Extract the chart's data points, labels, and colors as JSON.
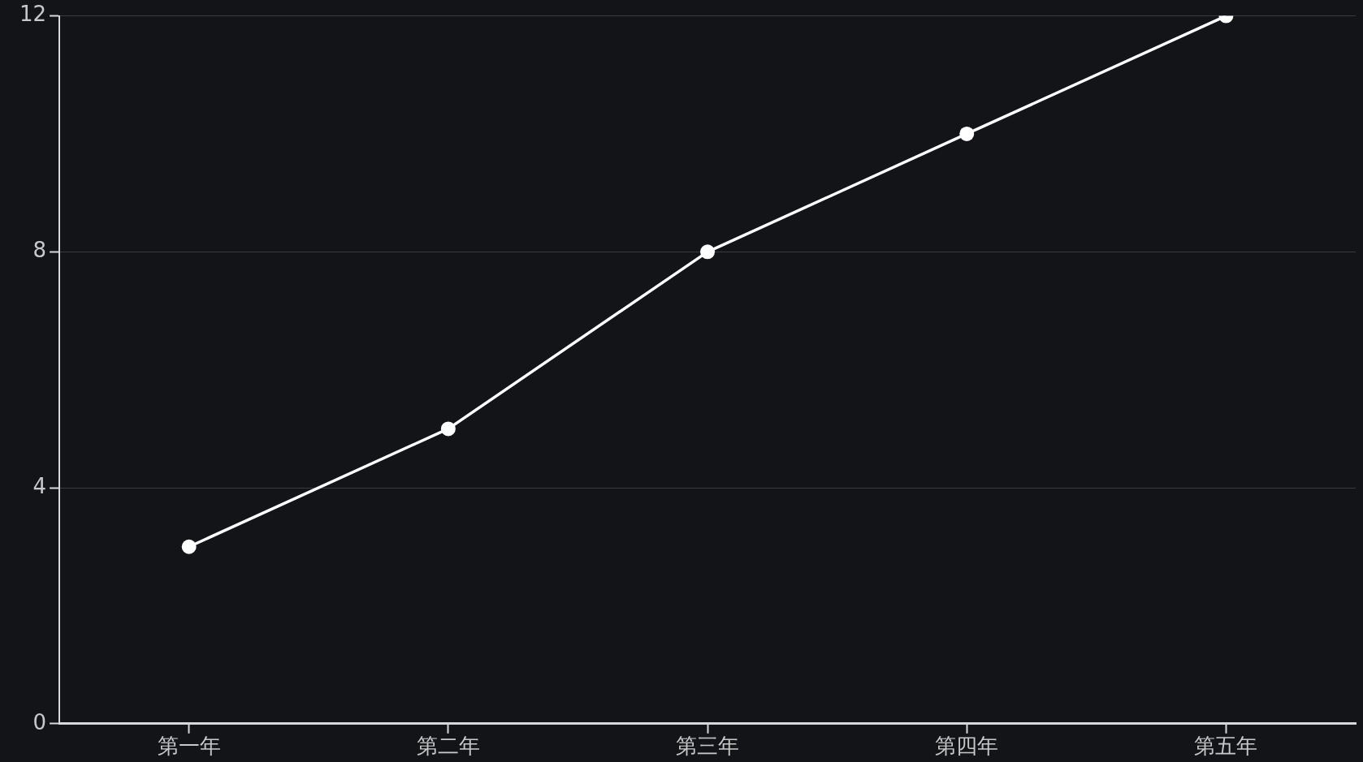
{
  "chart_data": {
    "type": "line",
    "categories": [
      "第一年",
      "第二年",
      "第三年",
      "第四年",
      "第五年"
    ],
    "series": [
      {
        "color": "#ffffff",
        "values": [
          3,
          5,
          8,
          10,
          12
        ]
      }
    ],
    "ylim": [
      0,
      12
    ],
    "yticks": [
      0,
      4,
      8,
      12
    ],
    "grid": "y",
    "marker": "circle",
    "line_style": "solid",
    "legend": false
  }
}
